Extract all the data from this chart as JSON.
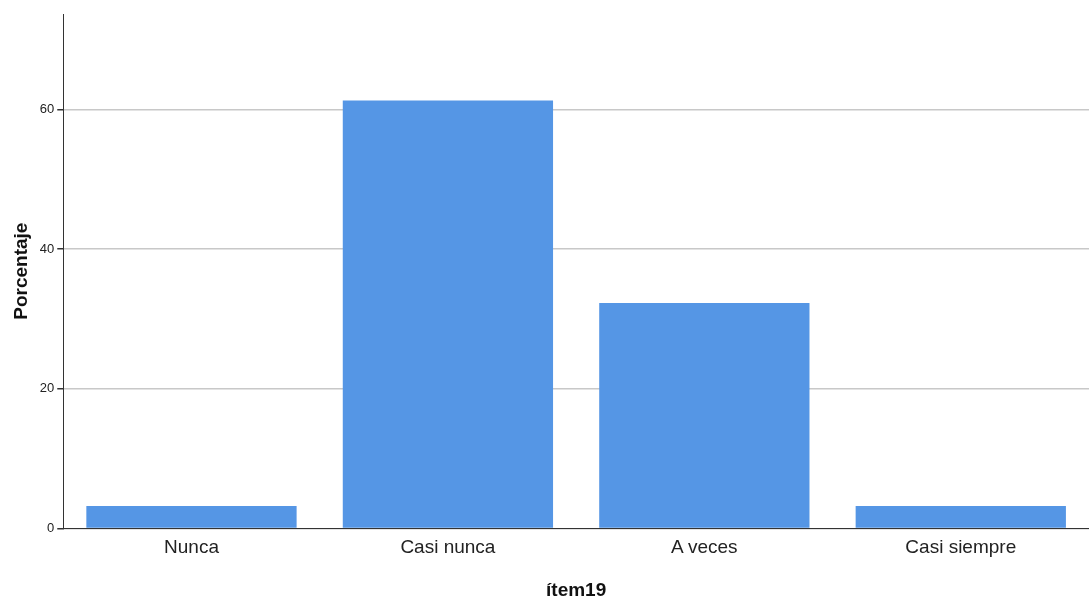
{
  "chart_data": {
    "type": "bar",
    "xlabel": "ítem19",
    "ylabel": "Porcentaje",
    "categories": [
      "Nunca",
      "Casi nunca",
      "A veces",
      "Casi siempre"
    ],
    "values": [
      3.2,
      61.3,
      32.3,
      3.2
    ],
    "color": "#5596e5",
    "ylim": [
      0,
      73.7
    ],
    "yticks": [
      0,
      20,
      40,
      60
    ],
    "grid": "y",
    "legend": false
  }
}
